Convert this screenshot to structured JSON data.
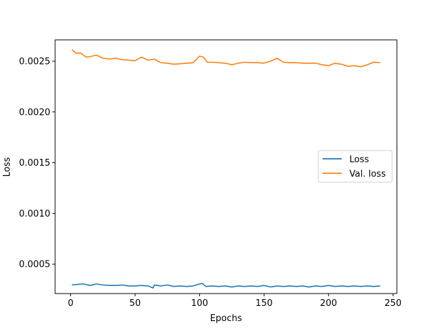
{
  "chart_data": {
    "type": "line",
    "title": "",
    "xlabel": "Epochs",
    "ylabel": "Loss",
    "xlim": [
      -12,
      253
    ],
    "ylim": [
      0.00021,
      0.00271
    ],
    "x_ticks": [
      0,
      50,
      100,
      150,
      200,
      250
    ],
    "x_tick_labels": [
      "0",
      "50",
      "100",
      "150",
      "200",
      "250"
    ],
    "y_ticks": [
      0.0005,
      0.001,
      0.0015,
      0.002,
      0.0025
    ],
    "y_tick_labels": [
      "0.0005",
      "0.0010",
      "0.0015",
      "0.0020",
      "0.0025"
    ],
    "grid": false,
    "legend_position": "center-right",
    "series": [
      {
        "name": "Loss",
        "color": "#1f77b4",
        "x": [
          1,
          5,
          10,
          15,
          20,
          25,
          30,
          35,
          40,
          45,
          50,
          55,
          60,
          64,
          65,
          70,
          75,
          80,
          85,
          90,
          95,
          100,
          102,
          105,
          110,
          115,
          120,
          125,
          130,
          135,
          140,
          145,
          150,
          155,
          160,
          165,
          170,
          175,
          180,
          185,
          190,
          195,
          200,
          205,
          210,
          215,
          220,
          225,
          230,
          235,
          240
        ],
        "y": [
          0.000295,
          0.0003,
          0.000305,
          0.00029,
          0.000305,
          0.000295,
          0.00029,
          0.00029,
          0.000295,
          0.000285,
          0.000285,
          0.00029,
          0.000285,
          0.000265,
          0.000295,
          0.000285,
          0.000295,
          0.00028,
          0.000285,
          0.00028,
          0.000285,
          0.000305,
          0.00031,
          0.00028,
          0.000285,
          0.00028,
          0.000285,
          0.000275,
          0.000285,
          0.00028,
          0.000285,
          0.00028,
          0.00029,
          0.000275,
          0.000285,
          0.00028,
          0.000285,
          0.00028,
          0.000285,
          0.000275,
          0.000285,
          0.00028,
          0.00029,
          0.00028,
          0.000285,
          0.00028,
          0.000285,
          0.00028,
          0.000285,
          0.00028,
          0.000285
        ]
      },
      {
        "name": "Val. loss",
        "color": "#ff7f0e",
        "x": [
          1,
          4,
          8,
          12,
          15,
          20,
          25,
          30,
          35,
          40,
          45,
          50,
          55,
          60,
          65,
          70,
          75,
          80,
          85,
          90,
          95,
          100,
          103,
          106,
          110,
          115,
          120,
          125,
          130,
          135,
          140,
          145,
          150,
          155,
          160,
          165,
          170,
          175,
          180,
          185,
          190,
          195,
          200,
          205,
          210,
          215,
          220,
          225,
          230,
          235,
          240
        ],
        "y": [
          0.002615,
          0.00258,
          0.00258,
          0.00254,
          0.002545,
          0.00256,
          0.00253,
          0.00252,
          0.00253,
          0.002515,
          0.00251,
          0.002505,
          0.00254,
          0.00251,
          0.00252,
          0.002485,
          0.00248,
          0.00247,
          0.002475,
          0.00248,
          0.002485,
          0.00255,
          0.00254,
          0.00249,
          0.00249,
          0.002485,
          0.00248,
          0.002465,
          0.00248,
          0.00249,
          0.002485,
          0.002485,
          0.00248,
          0.0025,
          0.00253,
          0.00249,
          0.002485,
          0.002485,
          0.00248,
          0.00248,
          0.00248,
          0.002465,
          0.002455,
          0.00248,
          0.00247,
          0.00245,
          0.002455,
          0.002445,
          0.002465,
          0.00249,
          0.002485
        ]
      }
    ]
  }
}
